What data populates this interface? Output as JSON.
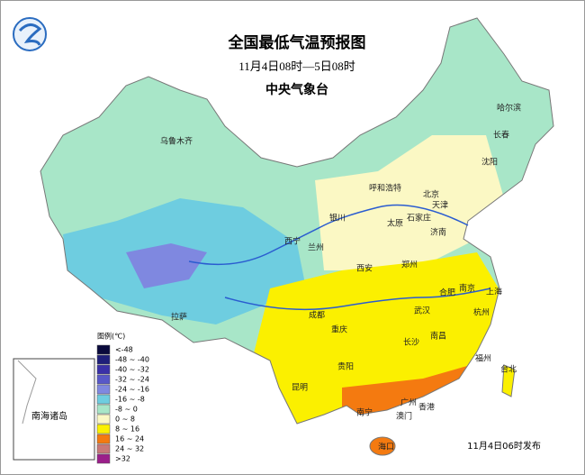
{
  "header": {
    "title": "全国最低气温预报图",
    "period": "11月4日08时—5日08时",
    "issuer": "中央气象台"
  },
  "legend": {
    "title": "图例(℃)",
    "items": [
      {
        "label": "<-48",
        "color": "#0a0a3c"
      },
      {
        "label": "-48 ~ -40",
        "color": "#1f1f7a"
      },
      {
        "label": "-40 ~ -32",
        "color": "#3a30a8"
      },
      {
        "label": "-32 ~ -24",
        "color": "#5858c8"
      },
      {
        "label": "-24 ~ -16",
        "color": "#7f88e0"
      },
      {
        "label": "-16 ~ -8",
        "color": "#6ecde0"
      },
      {
        "label": "-8 ~ 0",
        "color": "#a8e6c8"
      },
      {
        "label": "0 ~ 8",
        "color": "#fbf8c4"
      },
      {
        "label": "8 ~ 16",
        "color": "#fbf000"
      },
      {
        "label": "16 ~ 24",
        "color": "#f47a10"
      },
      {
        "label": "24 ~ 32",
        "color": "#c87878"
      },
      {
        "label": ">32",
        "color": "#9b1f8a"
      }
    ]
  },
  "cities": [
    "乌鲁木齐",
    "哈尔滨",
    "长春",
    "沈阳",
    "呼和浩特",
    "北京",
    "天津",
    "银川",
    "太原",
    "石家庄",
    "济南",
    "西宁",
    "兰州",
    "西安",
    "郑州",
    "合肥",
    "南京",
    "上海",
    "拉萨",
    "成都",
    "武汉",
    "杭州",
    "重庆",
    "长沙",
    "南昌",
    "贵阳",
    "福州",
    "台北",
    "昆明",
    "南宁",
    "广州",
    "香港",
    "澳门",
    "海口"
  ],
  "inset_label": "南海诸岛",
  "release": "11月4日06时发布"
}
